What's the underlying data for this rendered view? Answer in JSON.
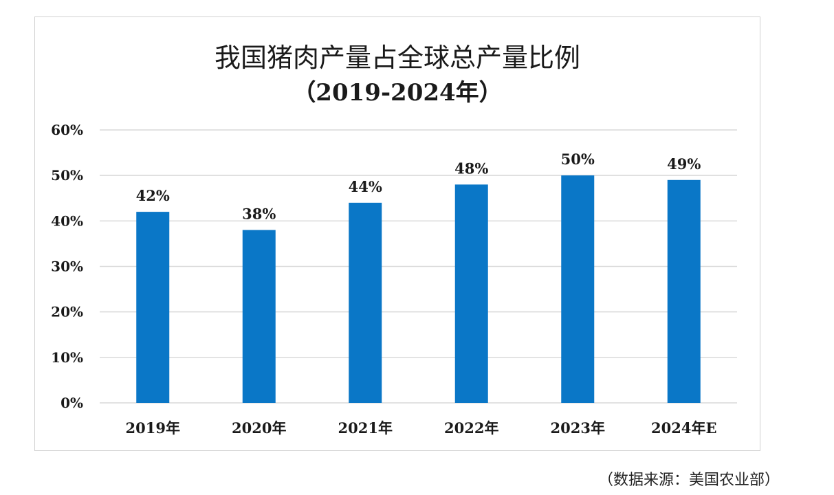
{
  "chart_data": {
    "type": "bar",
    "title": "我国猪肉产量占全球总产量比例",
    "subtitle": "（2019-2024年）",
    "categories": [
      "2019年",
      "2020年",
      "2021年",
      "2022年",
      "2023年",
      "2024年E"
    ],
    "values": [
      42,
      38,
      44,
      48,
      50,
      49
    ],
    "data_labels": [
      "42%",
      "38%",
      "44%",
      "48%",
      "50%",
      "49%"
    ],
    "yticks": [
      "0%",
      "10%",
      "20%",
      "30%",
      "40%",
      "50%",
      "60%"
    ],
    "ylim": [
      0,
      60
    ],
    "xlabel": "",
    "ylabel": "",
    "grid": true,
    "legend": "none",
    "bar_color": "#0a77c7",
    "grid_color": "#d9d9d9"
  },
  "source_note": "（数据来源：美国农业部）"
}
